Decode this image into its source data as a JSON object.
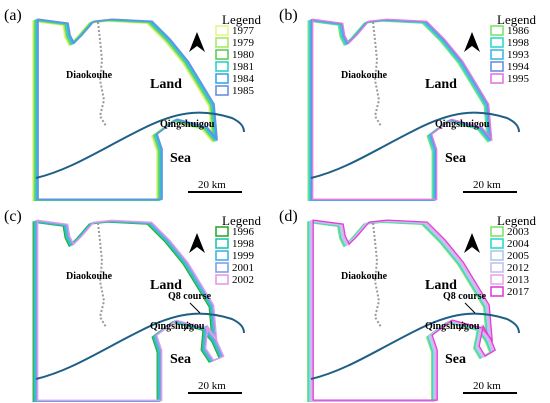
{
  "figure": {
    "colors": {
      "river": "#1f5f86",
      "boundary_gray": "#9a9a9a",
      "north_arrow": "#000000"
    },
    "panels": [
      {
        "id": "a",
        "label": "(a)",
        "legend_title": "Legend",
        "legend_items": [
          {
            "year": "1977",
            "color": "#e6f58c"
          },
          {
            "year": "1979",
            "color": "#a8e86a"
          },
          {
            "year": "1980",
            "color": "#5ccf52"
          },
          {
            "year": "1981",
            "color": "#2dd3c8"
          },
          {
            "year": "1984",
            "color": "#39a7e8"
          },
          {
            "year": "1985",
            "color": "#6a8fe0"
          }
        ],
        "places": {
          "diaokouhe": "Diaokouhe",
          "land": "Land",
          "qingshuigou": "Qingshuigou",
          "sea": "Sea"
        },
        "scale": "20 km",
        "course_label": ""
      },
      {
        "id": "b",
        "label": "(b)",
        "legend_title": "Legend",
        "legend_items": [
          {
            "year": "1986",
            "color": "#7fe36e"
          },
          {
            "year": "1998",
            "color": "#2fd9c9"
          },
          {
            "year": "1993",
            "color": "#41b7e6"
          },
          {
            "year": "1994",
            "color": "#6a8fe0"
          },
          {
            "year": "1995",
            "color": "#e27ae0"
          }
        ],
        "places": {
          "diaokouhe": "Diaokouhe",
          "land": "Land",
          "qingshuigou": "Qingshuigou",
          "sea": "Sea"
        },
        "scale": "20 km",
        "course_label": ""
      },
      {
        "id": "c",
        "label": "(c)",
        "legend_title": "Legend",
        "legend_items": [
          {
            "year": "1996",
            "color": "#2ea82e"
          },
          {
            "year": "1998",
            "color": "#1fc9a8"
          },
          {
            "year": "1999",
            "color": "#3fb3e8"
          },
          {
            "year": "2001",
            "color": "#7fa1e6"
          },
          {
            "year": "2002",
            "color": "#e69ae6"
          }
        ],
        "places": {
          "diaokouhe": "Diaokouhe",
          "land": "Land",
          "qingshuigou": "Qingshuigou",
          "sea": "Sea"
        },
        "scale": "20 km",
        "course_label": "Q8 course"
      },
      {
        "id": "d",
        "label": "(d)",
        "legend_title": "Legend",
        "legend_items": [
          {
            "year": "2003",
            "color": "#7fe36e"
          },
          {
            "year": "2004",
            "color": "#2fd9c9"
          },
          {
            "year": "2005",
            "color": "#a9cbe8"
          },
          {
            "year": "2012",
            "color": "#c8c0ee"
          },
          {
            "year": "2013",
            "color": "#e6a8e6"
          },
          {
            "year": "2017",
            "color": "#e03fd8"
          }
        ],
        "places": {
          "diaokouhe": "Diaokouhe",
          "land": "Land",
          "qingshuigou": "Qingshuigou",
          "sea": "Sea"
        },
        "scale": "20 km",
        "course_label": "Q8 course"
      }
    ]
  }
}
